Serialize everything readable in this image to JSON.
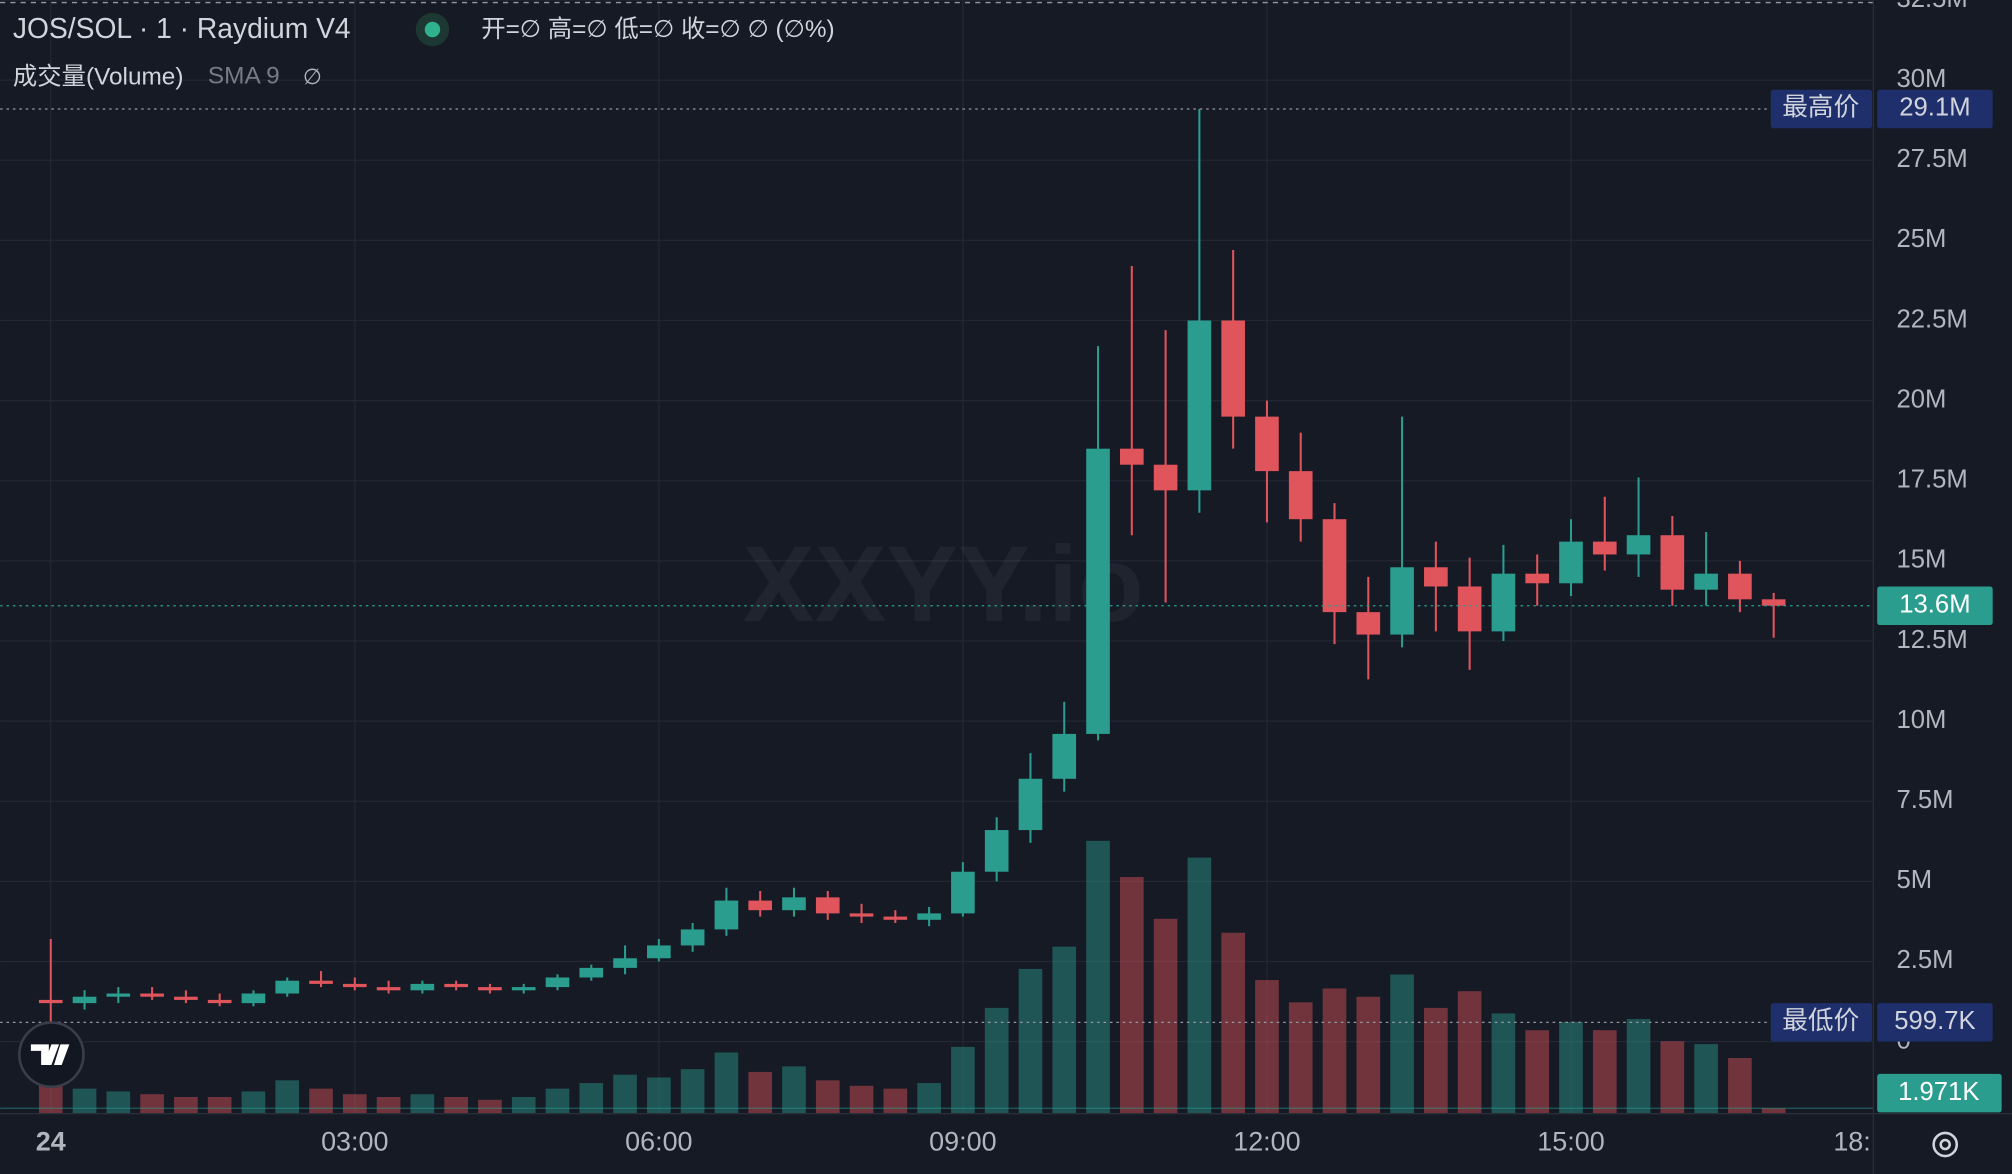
{
  "chart_data": {
    "type": "candlestick",
    "title": "JOS/SOL · 1 · Raydium V4",
    "ohlc_legend": "开=∅ 高=∅ 低=∅ 收=∅ ∅ (∅%)",
    "volume_title": "成交量(Volume)",
    "volume_sma": "SMA 9",
    "volume_sma_value": "∅",
    "watermark": "XXYY.io",
    "up_color": "#2a9d8f",
    "down_color": "#e0545c",
    "grid": true,
    "xlim": [
      -30,
      1079
    ],
    "xticks": [
      {
        "value": 0,
        "label": "24"
      },
      {
        "value": 180,
        "label": "03:00"
      },
      {
        "value": 360,
        "label": "06:00"
      },
      {
        "value": 540,
        "label": "09:00"
      },
      {
        "value": 720,
        "label": "12:00"
      },
      {
        "value": 900,
        "label": "15:00"
      },
      {
        "value": 1080,
        "label": "18:"
      }
    ],
    "ylim": [
      -2250000,
      32500000
    ],
    "yticks": [
      0,
      {
        "value": 2500000,
        "label": "2.5M"
      },
      {
        "value": 5000000,
        "label": "5M"
      },
      {
        "value": 7500000,
        "label": "7.5M"
      },
      {
        "value": 10000000,
        "label": "10M"
      },
      {
        "value": 12500000,
        "label": "12.5M"
      },
      {
        "value": 15000000,
        "label": "15M"
      },
      {
        "value": 17500000,
        "label": "17.5M"
      },
      {
        "value": 20000000,
        "label": "20M"
      },
      {
        "value": 22500000,
        "label": "22.5M"
      },
      {
        "value": 25000000,
        "label": "25M"
      },
      {
        "value": 27500000,
        "label": "27.5M"
      },
      {
        "value": 30000000,
        "label": "30M"
      },
      {
        "value": 32500000,
        "label": "32.5M"
      }
    ],
    "y2lim": [
      0,
      400000
    ],
    "high_marker": {
      "name": "最高价",
      "price": {
        "value": 29100000,
        "label": "29.1M"
      }
    },
    "low_marker": {
      "name": "最低价",
      "price": {
        "value": 599700,
        "label": "599.7K"
      }
    },
    "last_price": {
      "value": 13600000,
      "label": "13.6M"
    },
    "last_volume": {
      "value": 1971,
      "label": "1.971K"
    },
    "x": [
      0,
      20,
      40,
      60,
      80,
      100,
      120,
      140,
      160,
      180,
      200,
      220,
      240,
      260,
      280,
      300,
      320,
      340,
      360,
      380,
      400,
      420,
      440,
      460,
      480,
      500,
      520,
      540,
      560,
      580,
      600,
      620,
      640,
      660,
      680,
      700,
      720,
      740,
      760,
      780,
      800,
      820,
      840,
      860,
      880,
      900,
      920,
      940,
      960,
      980,
      1000,
      1020
    ],
    "open": [
      1300000,
      1200000,
      1400000,
      1500000,
      1400000,
      1300000,
      1200000,
      1500000,
      1900000,
      1800000,
      1700000,
      1600000,
      1800000,
      1700000,
      1600000,
      1700000,
      2000000,
      2300000,
      2600000,
      3000000,
      3500000,
      4400000,
      4100000,
      4500000,
      4000000,
      3900000,
      3800000,
      4000000,
      5300000,
      6600000,
      8200000,
      9600000,
      18500000,
      18000000,
      17200000,
      22500000,
      19500000,
      17800000,
      16300000,
      13400000,
      12700000,
      14800000,
      14200000,
      12800000,
      14600000,
      14300000,
      15600000,
      15200000,
      15800000,
      14100000,
      14600000,
      13800000
    ],
    "high": [
      3200000,
      1600000,
      1700000,
      1700000,
      1600000,
      1500000,
      1600000,
      2000000,
      2200000,
      2000000,
      1900000,
      1900000,
      1900000,
      1800000,
      1800000,
      2100000,
      2400000,
      3000000,
      3200000,
      3700000,
      4800000,
      4700000,
      4800000,
      4700000,
      4300000,
      4100000,
      4200000,
      5600000,
      7000000,
      9000000,
      10600000,
      21700000,
      24200000,
      22200000,
      29100000,
      24700000,
      20000000,
      19000000,
      16800000,
      14500000,
      19500000,
      15600000,
      15100000,
      15500000,
      15200000,
      16300000,
      17000000,
      17600000,
      16400000,
      15900000,
      15000000,
      14000000
    ],
    "low": [
      600000,
      1000000,
      1200000,
      1300000,
      1200000,
      1100000,
      1100000,
      1400000,
      1700000,
      1600000,
      1500000,
      1500000,
      1600000,
      1500000,
      1500000,
      1600000,
      1900000,
      2100000,
      2500000,
      2800000,
      3300000,
      3900000,
      3900000,
      3800000,
      3700000,
      3700000,
      3600000,
      3900000,
      5000000,
      6200000,
      7800000,
      9400000,
      15800000,
      13700000,
      16500000,
      18500000,
      16200000,
      15600000,
      12400000,
      11300000,
      12300000,
      12800000,
      11600000,
      12500000,
      13600000,
      13900000,
      14700000,
      14500000,
      13600000,
      13600000,
      13400000,
      12600000
    ],
    "close": [
      1200000,
      1400000,
      1500000,
      1400000,
      1300000,
      1200000,
      1500000,
      1900000,
      1800000,
      1700000,
      1600000,
      1800000,
      1700000,
      1600000,
      1700000,
      2000000,
      2300000,
      2600000,
      3000000,
      3500000,
      4400000,
      4100000,
      4500000,
      4000000,
      3900000,
      3800000,
      4000000,
      5300000,
      6600000,
      8200000,
      9600000,
      18500000,
      18000000,
      17200000,
      22500000,
      19500000,
      17800000,
      16300000,
      13400000,
      12700000,
      14800000,
      14200000,
      12800000,
      14600000,
      14300000,
      15600000,
      15200000,
      15800000,
      14100000,
      14600000,
      13800000,
      13600000
    ],
    "volume": [
      14000,
      9000,
      8000,
      7000,
      6000,
      6000,
      8000,
      12000,
      9000,
      7000,
      6000,
      7000,
      6000,
      5000,
      6000,
      9000,
      11000,
      14000,
      13000,
      16000,
      22000,
      15000,
      17000,
      12000,
      10000,
      9000,
      11000,
      24000,
      38000,
      52000,
      60000,
      98000,
      85000,
      70000,
      92000,
      65000,
      48000,
      40000,
      45000,
      42000,
      50000,
      38000,
      44000,
      36000,
      30000,
      33000,
      30000,
      34000,
      26000,
      25000,
      20000,
      1971
    ]
  }
}
